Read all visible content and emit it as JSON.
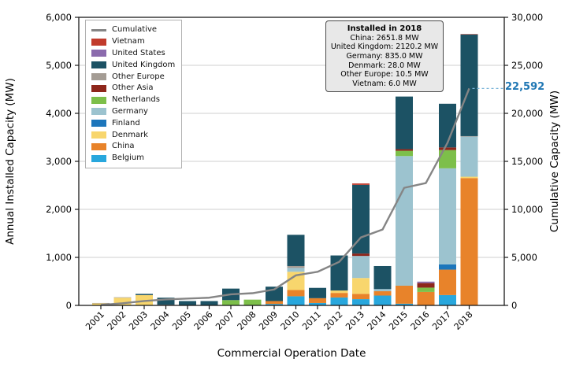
{
  "chart_data": {
    "type": "bar",
    "stacked": true,
    "grid": true,
    "xlabel": "Commercial Operation Date",
    "ylabel_left": "Annual Installed Capacity (MW)",
    "ylabel_right": "Cumulative Capacity (MW)",
    "categories": [
      "2001",
      "2002",
      "2003",
      "2004",
      "2005",
      "2006",
      "2007",
      "2008",
      "2009",
      "2010",
      "2011",
      "2012",
      "2013",
      "2014",
      "2015",
      "2016",
      "2017",
      "2018"
    ],
    "left_axis": {
      "min": 0,
      "max": 6000,
      "tick_values": [
        0,
        1000,
        2000,
        3000,
        4000,
        5000,
        6000
      ],
      "tick_labels": [
        "0",
        "1,000",
        "2,000",
        "3,000",
        "4,000",
        "5,000",
        "6,000"
      ]
    },
    "right_axis": {
      "min": 0,
      "max": 30000,
      "tick_values": [
        0,
        5000,
        10000,
        15000,
        20000,
        25000,
        30000
      ],
      "tick_labels": [
        "0",
        "5,000",
        "10,000",
        "15,000",
        "20,000",
        "25,000",
        "30,000"
      ]
    },
    "series": [
      {
        "name": "Belgium",
        "color": "#28a7dd",
        "values": [
          0,
          0,
          0,
          0,
          0,
          0,
          0,
          0,
          30,
          190,
          50,
          165,
          130,
          205,
          35,
          0,
          215,
          0
        ]
      },
      {
        "name": "China",
        "color": "#e8832a",
        "values": [
          0,
          0,
          0,
          0,
          0,
          0,
          0,
          0,
          60,
          130,
          100,
          95,
          110,
          90,
          375,
          280,
          530,
          2651.8
        ]
      },
      {
        "name": "Denmark",
        "color": "#f8d66d",
        "values": [
          40,
          160,
          215,
          0,
          0,
          0,
          0,
          0,
          0,
          380,
          0,
          50,
          330,
          0,
          0,
          0,
          0,
          28
        ]
      },
      {
        "name": "Finland",
        "color": "#1d76bb",
        "values": [
          0,
          0,
          0,
          0,
          0,
          0,
          0,
          0,
          0,
          0,
          0,
          0,
          0,
          0,
          0,
          0,
          110,
          0
        ]
      },
      {
        "name": "Germany",
        "color": "#9cc3cf",
        "values": [
          0,
          0,
          0,
          0,
          0,
          0,
          0,
          0,
          0,
          80,
          0,
          0,
          460,
          45,
          2700,
          0,
          2000,
          835
        ]
      },
      {
        "name": "Netherlands",
        "color": "#7dbf4a",
        "values": [
          0,
          0,
          0,
          0,
          0,
          0,
          110,
          120,
          0,
          0,
          0,
          0,
          0,
          0,
          110,
          90,
          380,
          0
        ]
      },
      {
        "name": "Other Asia",
        "color": "#8e261b",
        "values": [
          0,
          0,
          0,
          0,
          0,
          0,
          0,
          0,
          0,
          0,
          0,
          0,
          50,
          0,
          35,
          95,
          55,
          0
        ]
      },
      {
        "name": "Other Europe",
        "color": "#a49c94",
        "values": [
          10,
          10,
          0,
          15,
          0,
          0,
          0,
          0,
          0,
          40,
          0,
          0,
          0,
          0,
          0,
          0,
          0,
          10.5
        ]
      },
      {
        "name": "United Kingdom",
        "color": "#1c5264",
        "values": [
          0,
          0,
          25,
          145,
          90,
          90,
          240,
          0,
          300,
          650,
          215,
          730,
          1430,
          480,
          1095,
          0,
          910,
          2120.2
        ]
      },
      {
        "name": "United States",
        "color": "#8b6bad",
        "values": [
          0,
          0,
          0,
          0,
          0,
          0,
          0,
          0,
          0,
          0,
          0,
          0,
          0,
          0,
          0,
          30,
          0,
          0
        ]
      },
      {
        "name": "Vietnam",
        "color": "#c13b2c",
        "values": [
          0,
          0,
          0,
          0,
          0,
          0,
          0,
          0,
          0,
          0,
          0,
          0,
          30,
          0,
          0,
          0,
          0,
          6
        ]
      }
    ],
    "cumulative": {
      "name": "Cumulative",
      "color": "#858585",
      "values": [
        50,
        220,
        460,
        620,
        710,
        800,
        1150,
        1270,
        1660,
        3130,
        3495,
        4535,
        7075,
        7895,
        12245,
        12740,
        16940,
        22592
      ]
    },
    "end_label": {
      "text": "22,592",
      "color": "#1f77b4"
    },
    "legend": {
      "position": "top-left",
      "entries": [
        "Cumulative",
        "Vietnam",
        "United States",
        "United Kingdom",
        "Other Europe",
        "Other Asia",
        "Netherlands",
        "Germany",
        "Finland",
        "Denmark",
        "China",
        "Belgium"
      ]
    }
  },
  "annotation": {
    "title": "Installed in 2018",
    "lines": [
      "China: 2651.8 MW",
      "United Kingdom: 2120.2 MW",
      "Germany: 835.0 MW",
      "Denmark: 28.0 MW",
      "Other Europe: 10.5 MW",
      "Vietnam: 6.0 MW"
    ]
  }
}
